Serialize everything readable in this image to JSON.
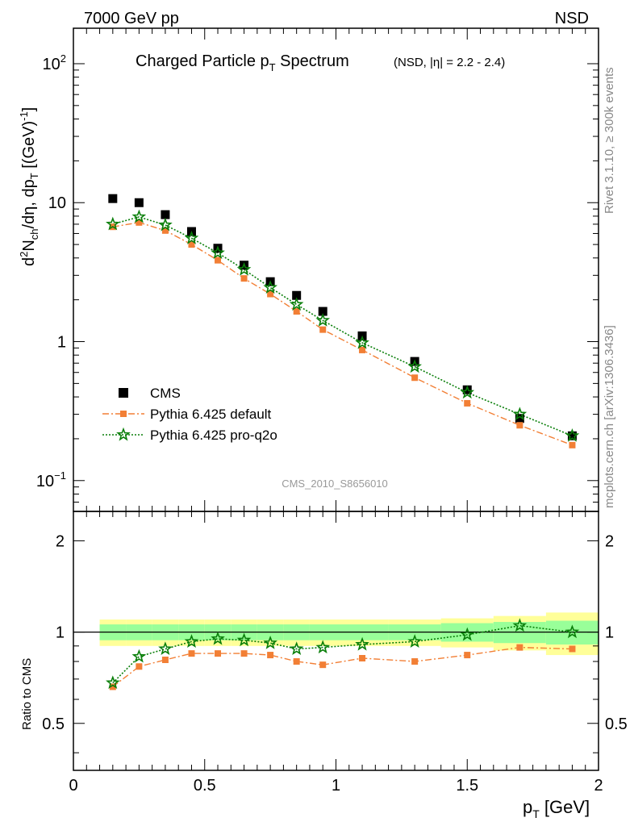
{
  "header": {
    "left": "7000 GeV pp",
    "right": "NSD"
  },
  "title": {
    "main": "Charged Particle p",
    "main_sub": "T",
    "main_tail": " Spectrum",
    "small": "(NSD, |η| = 2.2 - 2.4)"
  },
  "side_labels": {
    "rivet": "Rivet 3.1.10, ≥ 300k events",
    "mcplots": "mcplots.cern.ch [arXiv:1306.3436]"
  },
  "analysis_id": "CMS_2010_S8656010",
  "axes": {
    "ylabel_top": "d²N_ch/dη, dp_T [(GeV)⁻¹]",
    "ylabel_ratio": "Ratio to CMS",
    "xlabel": "p_T [GeV]",
    "x_ticks": [
      "0",
      "0.5",
      "1",
      "1.5",
      "2"
    ],
    "y_ticks_top": [
      "10⁻¹",
      "1",
      "10",
      "10²"
    ],
    "y_ticks_ratio": [
      "0.5",
      "1",
      "2"
    ]
  },
  "legend": [
    {
      "label": "CMS",
      "marker": "square",
      "color": "#000000"
    },
    {
      "label": "Pythia 6.425 default",
      "marker": "square",
      "color": "#f27f35"
    },
    {
      "label": "Pythia 6.425 pro-q2o",
      "marker": "star",
      "color": "#0a7f0a"
    }
  ],
  "chart_data": {
    "type": "scatter",
    "x_scale": "linear",
    "y_scale_top": "log",
    "xlim": [
      0,
      2
    ],
    "ylim_top": [
      0.06,
      180
    ],
    "ylim_ratio": [
      0.35,
      2.5
    ],
    "ratio_y_scale": "log",
    "bins": [
      [
        0.1,
        0.2
      ],
      [
        0.2,
        0.3
      ],
      [
        0.3,
        0.4
      ],
      [
        0.4,
        0.5
      ],
      [
        0.5,
        0.6
      ],
      [
        0.6,
        0.7
      ],
      [
        0.7,
        0.8
      ],
      [
        0.8,
        0.9
      ],
      [
        0.9,
        1.0
      ],
      [
        1.0,
        1.2
      ],
      [
        1.2,
        1.4
      ],
      [
        1.4,
        1.6
      ],
      [
        1.6,
        1.8
      ],
      [
        1.8,
        2.0
      ]
    ],
    "x": [
      0.15,
      0.25,
      0.35,
      0.45,
      0.55,
      0.65,
      0.75,
      0.85,
      0.95,
      1.1,
      1.3,
      1.5,
      1.7,
      1.9
    ],
    "series": [
      {
        "name": "CMS",
        "values": [
          10.7,
          10.0,
          8.2,
          6.2,
          4.7,
          3.55,
          2.7,
          2.15,
          1.65,
          1.1,
          0.72,
          0.45,
          0.28,
          0.21
        ]
      },
      {
        "name": "Pythia 6.425 default",
        "values": [
          6.7,
          7.2,
          6.3,
          5.0,
          3.85,
          2.85,
          2.2,
          1.65,
          1.22,
          0.87,
          0.55,
          0.36,
          0.25,
          0.18
        ]
      },
      {
        "name": "Pythia 6.425 pro-q2o",
        "values": [
          7.0,
          7.9,
          6.9,
          5.55,
          4.35,
          3.3,
          2.45,
          1.85,
          1.42,
          0.98,
          0.66,
          0.43,
          0.3,
          0.21
        ]
      }
    ],
    "ratio_series": [
      {
        "name": "Pythia 6.425 default",
        "values": [
          0.66,
          0.77,
          0.81,
          0.85,
          0.85,
          0.85,
          0.84,
          0.8,
          0.78,
          0.82,
          0.8,
          0.84,
          0.89,
          0.88
        ]
      },
      {
        "name": "Pythia 6.425 pro-q2o",
        "values": [
          0.68,
          0.83,
          0.88,
          0.93,
          0.95,
          0.94,
          0.92,
          0.88,
          0.89,
          0.91,
          0.93,
          0.98,
          1.05,
          1.0
        ]
      }
    ],
    "band_stat": [
      0.06,
      0.06,
      0.06,
      0.06,
      0.06,
      0.06,
      0.06,
      0.06,
      0.06,
      0.06,
      0.06,
      0.07,
      0.08,
      0.09
    ],
    "band_total": [
      0.1,
      0.1,
      0.1,
      0.1,
      0.1,
      0.1,
      0.1,
      0.1,
      0.1,
      0.1,
      0.1,
      0.11,
      0.13,
      0.16
    ],
    "colors": {
      "cms": "#000000",
      "default": "#f27f35",
      "proq2o": "#0a7f0a",
      "band_inner": "#99ff99",
      "band_outer": "#ffff99",
      "side_text": "#888888"
    }
  }
}
